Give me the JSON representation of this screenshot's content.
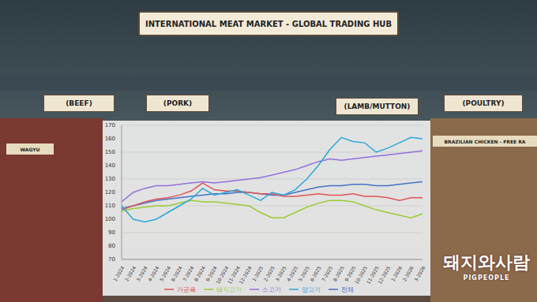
{
  "chart_data": {
    "type": "line",
    "categories": [
      "1-2024",
      "2-2024",
      "3-2024",
      "4-2024",
      "5-2024",
      "6-2024",
      "7-2024",
      "8-2024",
      "9-2024",
      "10-2024",
      "11-2024",
      "12-2024",
      "1-2025",
      "2-2025",
      "3-2025",
      "4-2025",
      "5-2025",
      "6-2025",
      "7-2025",
      "8-2025",
      "9-2025",
      "10-2025",
      "11-2025",
      "12-2025",
      "1-2026",
      "2-2026",
      "3-2026"
    ],
    "series": [
      {
        "name": "전체",
        "color": "#4472c4",
        "values": [
          108,
          110,
          112,
          114,
          115,
          116,
          117,
          118,
          119,
          119,
          120,
          120,
          119,
          118,
          118,
          120,
          122,
          124,
          125,
          125,
          126,
          126,
          125,
          125,
          126,
          127,
          128
        ]
      },
      {
        "name": "가공육",
        "color": "#e05555",
        "values": [
          107,
          110,
          113,
          115,
          116,
          118,
          121,
          127,
          122,
          121,
          121,
          120,
          119,
          119,
          117,
          117,
          118,
          119,
          118,
          118,
          119,
          117,
          117,
          116,
          114,
          116,
          116
        ]
      },
      {
        "name": "돼지고기",
        "color": "#9acd32",
        "values": [
          106,
          108,
          109,
          110,
          110,
          112,
          114,
          113,
          113,
          112,
          111,
          110,
          105,
          101,
          101,
          105,
          109,
          112,
          114,
          114,
          113,
          110,
          107,
          105,
          103,
          101,
          104
        ]
      },
      {
        "name": "소고기",
        "color": "#9370db",
        "values": [
          113,
          120,
          123,
          125,
          125,
          126,
          127,
          128,
          127,
          128,
          129,
          130,
          131,
          133,
          135,
          137,
          140,
          143,
          145,
          144,
          145,
          146,
          147,
          148,
          149,
          150,
          151
        ]
      },
      {
        "name": "양고기",
        "color": "#2aa7d8",
        "values": [
          110,
          100,
          98,
          100,
          105,
          110,
          115,
          123,
          118,
          120,
          122,
          118,
          114,
          120,
          118,
          122,
          130,
          140,
          152,
          161,
          158,
          157,
          150,
          153,
          157,
          161,
          160
        ]
      }
    ],
    "ylim": [
      70,
      170
    ],
    "yticks": [
      70,
      80,
      90,
      100,
      110,
      120,
      130,
      140,
      150,
      160,
      170
    ],
    "grid": true,
    "legend": "bottom"
  },
  "scene": {
    "banner": "INTERNATIONAL MEAT MARKET - GLOBAL TRADING HUB",
    "sections": [
      "(BEEF)",
      "(PORK)",
      "(LAMB/MUTTON)",
      "(POULTRY)"
    ],
    "signs": [
      "WAGYU",
      "BRAZILIAN CHICKEN - FREE RA"
    ],
    "watermark": {
      "title": "돼지와사람",
      "subtitle": "PIGPEOPLE"
    }
  }
}
